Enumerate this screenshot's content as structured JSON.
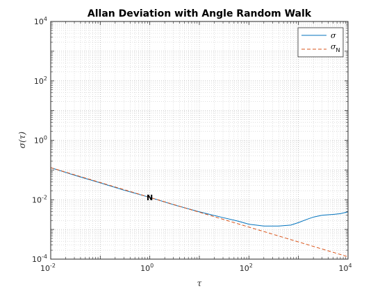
{
  "chart_data": {
    "type": "line",
    "title": "Allan Deviation with Angle Random Walk",
    "xlabel": "τ",
    "ylabel": "σ(τ)",
    "xscale": "log",
    "yscale": "log",
    "xlim": [
      0.01,
      10000
    ],
    "ylim": [
      0.0001,
      10000
    ],
    "grid": true,
    "minor_grid": true,
    "legend_position": "top-right",
    "x_ticks": [
      {
        "base": "10",
        "exp": "-2"
      },
      {
        "base": "10",
        "exp": "0"
      },
      {
        "base": "10",
        "exp": "2"
      },
      {
        "base": "10",
        "exp": "4"
      }
    ],
    "y_ticks": [
      {
        "base": "10",
        "exp": "-4"
      },
      {
        "base": "10",
        "exp": "-2"
      },
      {
        "base": "10",
        "exp": "0"
      },
      {
        "base": "10",
        "exp": "2"
      },
      {
        "base": "10",
        "exp": "4"
      }
    ],
    "series": [
      {
        "name": "σ",
        "legend_sub": "",
        "color": "#0072BD",
        "style": "solid",
        "x": [
          0.01,
          0.03,
          0.1,
          0.3,
          1,
          3,
          10,
          30,
          60,
          100,
          200,
          400,
          700,
          1000,
          1500,
          2000,
          3000,
          5000,
          7000,
          10000
        ],
        "y": [
          0.12,
          0.067,
          0.037,
          0.021,
          0.012,
          0.0068,
          0.0039,
          0.0025,
          0.0019,
          0.0015,
          0.0013,
          0.0013,
          0.0014,
          0.0017,
          0.0022,
          0.0026,
          0.003,
          0.0032,
          0.0034,
          0.0039
        ]
      },
      {
        "name": "σ",
        "legend_sub": "N",
        "color": "#D95319",
        "style": "dashed",
        "x": [
          0.01,
          10000
        ],
        "y": [
          0.12,
          0.00012
        ]
      }
    ],
    "annotations": [
      {
        "text": "N",
        "x": 1,
        "y": 0.012
      }
    ]
  }
}
